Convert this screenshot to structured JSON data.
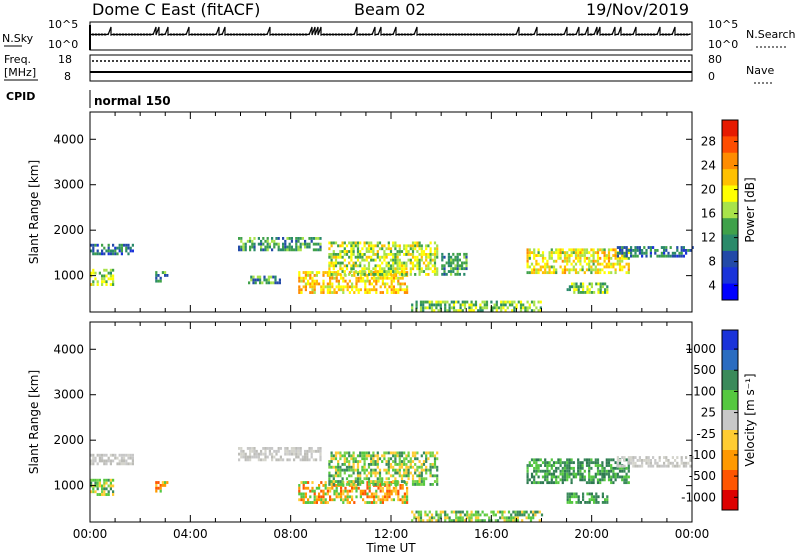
{
  "header": {
    "title": "Dome C East (fitACF)",
    "beam": "Beam 02",
    "date": "19/Nov/2019"
  },
  "sky_panel": {
    "left_label": "N.Sky",
    "right_label": "N.Search",
    "tick_top_left": "10^5",
    "tick_bottom_left": "10^0",
    "tick_top_right": "10^5",
    "tick_bottom_right": "10^0"
  },
  "freq_panel": {
    "left_label_1": "Freq.",
    "left_label_2": "[MHz]",
    "tick_top_left": "18",
    "tick_bottom_left": "8",
    "right_label": "Nave",
    "tick_top_right": "80",
    "tick_bottom_right": "0"
  },
  "cpid_panel": {
    "left_label": "CPID",
    "mode_text": "normal 150"
  },
  "time_axis": {
    "label": "Time UT",
    "ticks": [
      "00:00",
      "04:00",
      "08:00",
      "12:00",
      "16:00",
      "20:00",
      "00:00"
    ]
  },
  "chart_data": [
    {
      "type": "heatmap",
      "name": "power",
      "ylabel": "Slant Range [km]",
      "yticks": [
        1000,
        2000,
        3000,
        4000
      ],
      "ylim": [
        200,
        4600
      ],
      "xlim": [
        0,
        24
      ],
      "colorbar_label": "Power [dB]",
      "colorbar_ticks": [
        "28",
        "24",
        "20",
        "16",
        "12",
        "8",
        "4"
      ],
      "colorbar_colors": [
        "#e61a00",
        "#ff4d00",
        "#ff8c00",
        "#ffc000",
        "#ffff00",
        "#a8e34a",
        "#3fa14a",
        "#2a8a6a",
        "#234aa8",
        "#1a33d9",
        "#0000ff"
      ],
      "regions": [
        {
          "t0": 0.0,
          "t1": 1.7,
          "r0": 1450,
          "r1": 1700,
          "level": 6
        },
        {
          "t0": 0.0,
          "t1": 0.9,
          "r0": 800,
          "r1": 1150,
          "level": 13
        },
        {
          "t0": 2.6,
          "t1": 3.1,
          "r0": 900,
          "r1": 1100,
          "level": 8
        },
        {
          "t0": 5.9,
          "t1": 9.2,
          "r0": 1550,
          "r1": 1850,
          "level": 9
        },
        {
          "t0": 6.3,
          "t1": 7.6,
          "r0": 850,
          "r1": 1000,
          "level": 9
        },
        {
          "t0": 8.3,
          "t1": 12.6,
          "r0": 650,
          "r1": 1100,
          "level": 18
        },
        {
          "t0": 9.5,
          "t1": 13.8,
          "r0": 1050,
          "r1": 1750,
          "level": 14
        },
        {
          "t0": 14.0,
          "t1": 15.0,
          "r0": 1000,
          "r1": 1500,
          "level": 9
        },
        {
          "t0": 17.4,
          "t1": 21.5,
          "r0": 1050,
          "r1": 1600,
          "level": 16
        },
        {
          "t0": 19.0,
          "t1": 20.6,
          "r0": 600,
          "r1": 850,
          "level": 12
        },
        {
          "t0": 21.0,
          "t1": 24.0,
          "r0": 1450,
          "r1": 1650,
          "level": 6
        },
        {
          "t0": 12.8,
          "t1": 16.0,
          "r0": 250,
          "r1": 450,
          "level": 11
        },
        {
          "t0": 16.0,
          "t1": 18.0,
          "r0": 250,
          "r1": 450,
          "level": 12
        }
      ]
    },
    {
      "type": "heatmap",
      "name": "velocity",
      "ylabel": "Slant Range [km]",
      "yticks": [
        1000,
        2000,
        3000,
        4000
      ],
      "ylim": [
        200,
        4600
      ],
      "xlim": [
        0,
        24
      ],
      "colorbar_label": "Velocity [m s^-1]",
      "colorbar_ticks": [
        "1000",
        "500",
        "100",
        "25",
        "-25",
        "-100",
        "-500",
        "-1000"
      ],
      "colorbar_colors": [
        "#1a33d9",
        "#2a6cc0",
        "#3a8a5a",
        "#55c840",
        "#c8c8c8",
        "#ffcc33",
        "#ff9900",
        "#ff5500",
        "#dd0000"
      ],
      "regions": [
        {
          "t0": 0.0,
          "t1": 1.7,
          "r0": 1450,
          "r1": 1700,
          "category": "near-zero"
        },
        {
          "t0": 0.0,
          "t1": 0.9,
          "r0": 800,
          "r1": 1150,
          "category": "weak-positive"
        },
        {
          "t0": 2.6,
          "t1": 3.1,
          "r0": 900,
          "r1": 1100,
          "category": "moderate-negative"
        },
        {
          "t0": 5.9,
          "t1": 9.2,
          "r0": 1550,
          "r1": 1850,
          "category": "near-zero"
        },
        {
          "t0": 8.3,
          "t1": 12.6,
          "r0": 650,
          "r1": 1100,
          "category": "moderate-negative"
        },
        {
          "t0": 9.5,
          "t1": 13.8,
          "r0": 1050,
          "r1": 1750,
          "category": "weak-positive"
        },
        {
          "t0": 17.4,
          "t1": 21.5,
          "r0": 1050,
          "r1": 1600,
          "category": "moderate-positive"
        },
        {
          "t0": 19.0,
          "t1": 20.6,
          "r0": 600,
          "r1": 850,
          "category": "moderate-positive"
        },
        {
          "t0": 21.0,
          "t1": 24.0,
          "r0": 1450,
          "r1": 1650,
          "category": "near-zero"
        },
        {
          "t0": 12.8,
          "t1": 18.0,
          "r0": 250,
          "r1": 450,
          "category": "weak-positive"
        }
      ]
    }
  ]
}
